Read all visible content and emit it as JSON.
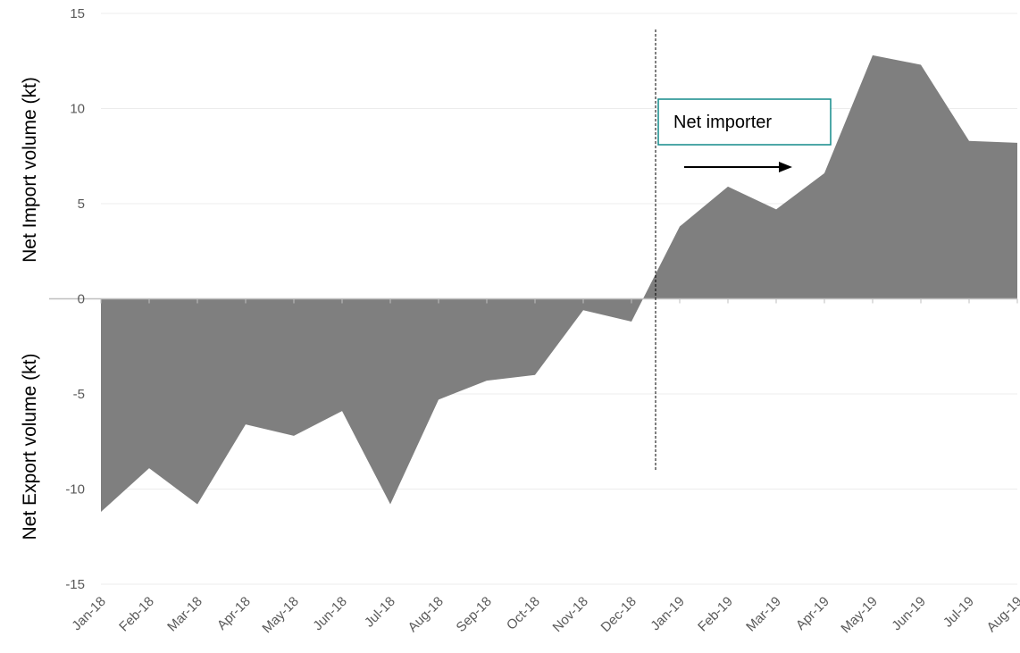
{
  "chart_data": {
    "type": "area",
    "title": "",
    "ylabel_top": "Net Import volume (kt)",
    "ylabel_bottom": "Net Export volume (kt)",
    "xlabel": "",
    "ylim": [
      -15,
      15
    ],
    "yticks": [
      15,
      10,
      5,
      0,
      -5,
      -10,
      -15
    ],
    "grid": true,
    "legend": "none",
    "categories": [
      "Jan-18",
      "Feb-18",
      "Mar-18",
      "Apr-18",
      "May-18",
      "Jun-18",
      "Jul-18",
      "Aug-18",
      "Sep-18",
      "Oct-18",
      "Nov-18",
      "Dec-18",
      "Jan-19",
      "Feb-19",
      "Mar-19",
      "Apr-19",
      "May-19",
      "Jun-19",
      "Jul-19",
      "Aug-19"
    ],
    "series": [
      {
        "values": [
          -11.2,
          -8.9,
          -10.8,
          -6.6,
          -7.2,
          -5.9,
          -10.8,
          -5.3,
          -4.3,
          -4.0,
          -0.6,
          -1.2,
          3.8,
          5.9,
          4.7,
          6.6,
          12.8,
          12.3,
          8.3,
          8.2
        ],
        "color": "#7f7f7f"
      }
    ],
    "annotations": [
      {
        "text": "Net importer",
        "arrow": "right",
        "divider_after_category": "Dec-18"
      }
    ]
  }
}
